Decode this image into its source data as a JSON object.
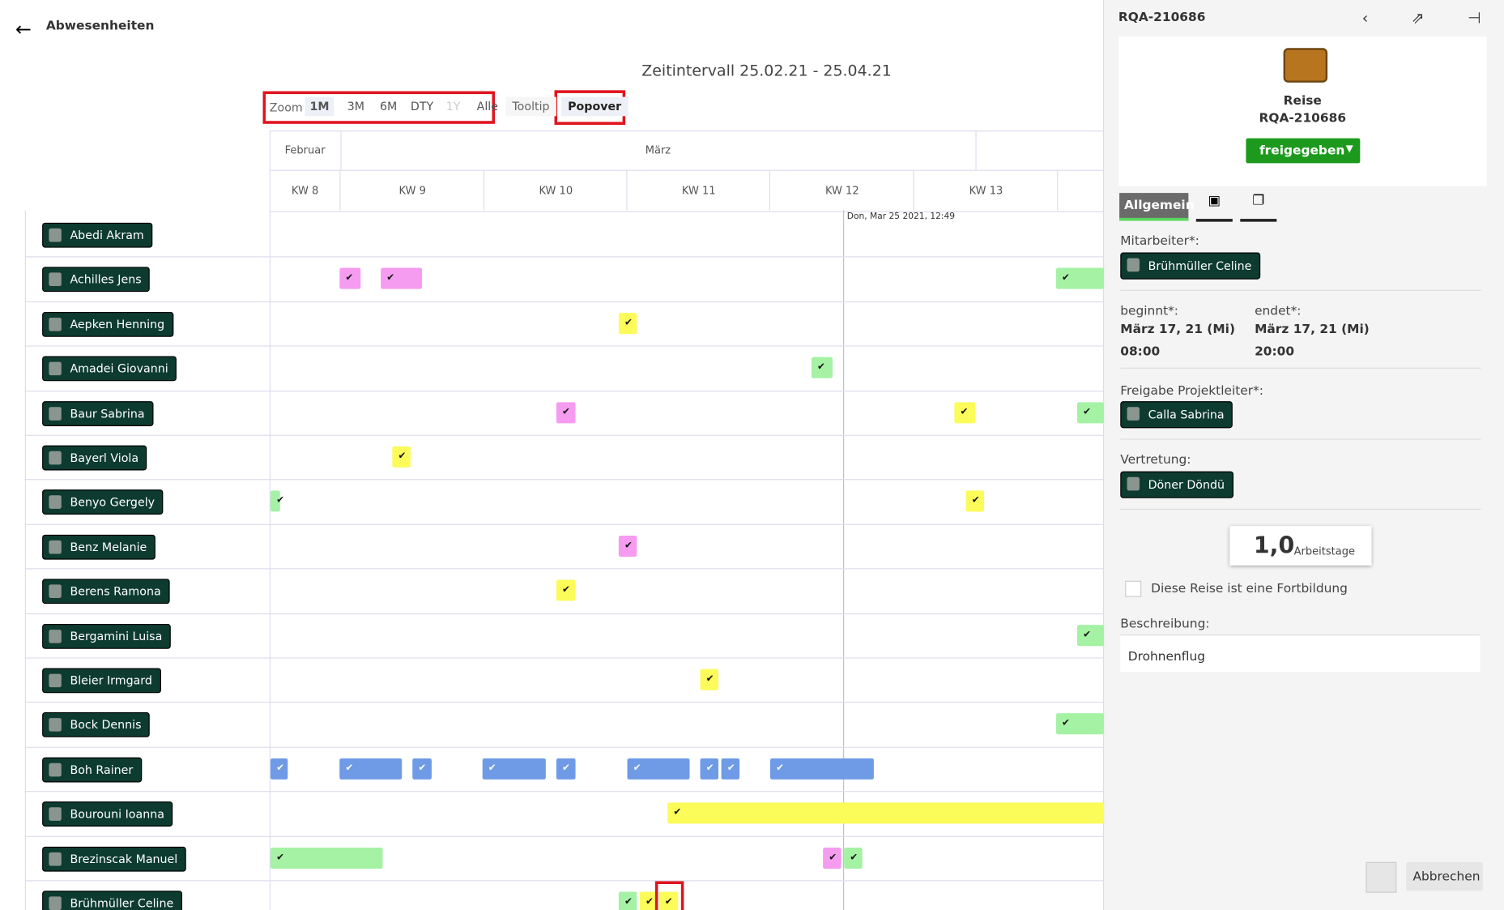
{
  "header": {
    "title": "Abwesenheiten"
  },
  "timeline": {
    "interval": "Zeitintervall 25.02.21 - 25.04.21",
    "zoom": {
      "label": "Zoom",
      "options": [
        "1M",
        "3M",
        "6M",
        "DTY",
        "1Y",
        "Alle"
      ]
    },
    "modes": [
      "Tooltip",
      "Popover"
    ],
    "months": [
      "Februar",
      "März"
    ],
    "weeks": [
      "KW 8",
      "KW 9",
      "KW 10",
      "KW 11",
      "KW 12",
      "KW 13"
    ],
    "now": "Don, Mar 25 2021, 12:49",
    "employees": [
      "Abedi Akram",
      "Achilles Jens",
      "Aepken Henning",
      "Amadei Giovanni",
      "Baur Sabrina",
      "Bayerl Viola",
      "Benyo Gergely",
      "Benz Melanie",
      "Berens Ramona",
      "Bergamini Luisa",
      "Bleier Irmgard",
      "Bock Dennis",
      "Boh Rainer",
      "Bourouni Ioanna",
      "Brezinscak Manuel",
      "Brühmüller Celine"
    ]
  },
  "panel": {
    "id": "RQA-210686",
    "type": "Reise",
    "number": "RQA-210686",
    "status": "freigegeben",
    "tab": "Allgemein",
    "employee_label": "Mitarbeiter*:",
    "employee": "Brühmüller Celine",
    "start_label": "beginnt*:",
    "start_date": "März 17, 21 (Mi)",
    "start_time": "08:00",
    "end_label": "endet*:",
    "end_date": "März 17, 21 (Mi)",
    "end_time": "20:00",
    "approver_label": "Freigabe Projektleiter*:",
    "approver": "Calla Sabrina",
    "deputy_label": "Vertretung:",
    "deputy": "Döner Döndü",
    "days": "1,0",
    "days_unit": "Arbeitstage",
    "training": "Diese Reise ist eine Fortbildung",
    "description_label": "Beschreibung:",
    "description": "Drohnenflug",
    "cancel": "Abbrechen"
  }
}
